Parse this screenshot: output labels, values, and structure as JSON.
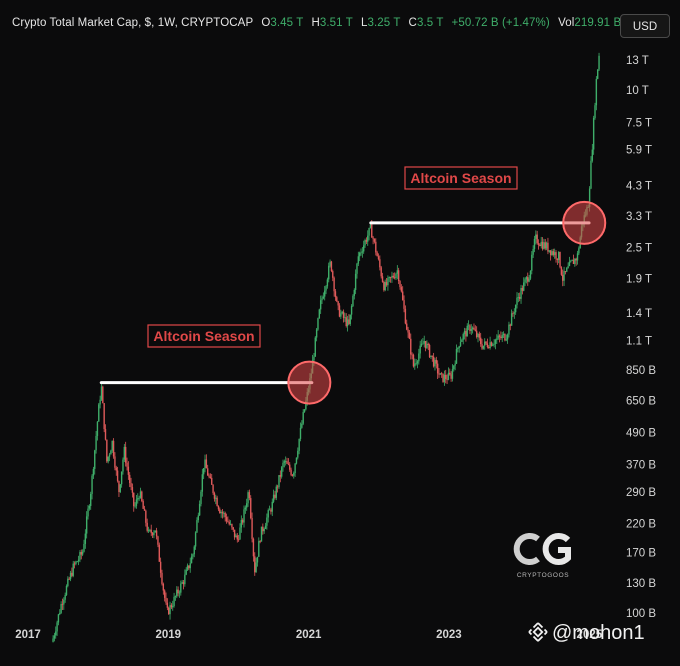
{
  "header": {
    "symbol": "Crypto Total Market Cap, $, 1W, CRYPTOCAP",
    "open_label": "O",
    "open_value": "3.45 T",
    "high_label": "H",
    "high_value": "3.51 T",
    "low_label": "L",
    "low_value": "3.25 T",
    "close_label": "C",
    "close_value": "3.5 T",
    "change": "+50.72 B (+1.47%)",
    "vol_label": "Vol",
    "vol_value": "219.91 B"
  },
  "toolbar": {
    "currency_button": "USD"
  },
  "watermark": {
    "label": "CRYPTOGOOS"
  },
  "credit": {
    "handle": "@mohon1"
  },
  "colors": {
    "up": "#3fae6a",
    "down": "#e05a5a",
    "annotation": "#e04848",
    "background": "#0b0b0c"
  },
  "chart_data": {
    "type": "line",
    "title": "Crypto Total Market Cap, $, 1W, CRYPTOCAP",
    "xlabel": "",
    "ylabel": "",
    "y_scale": "log",
    "ylim": [
      90,
      15500
    ],
    "xlim": [
      "2017-01-01",
      "2025-02-15"
    ],
    "y_ticks": [
      {
        "value": 13000,
        "label": "13 T"
      },
      {
        "value": 10000,
        "label": "10 T"
      },
      {
        "value": 7500,
        "label": "7.5 T"
      },
      {
        "value": 5900,
        "label": "5.9 T"
      },
      {
        "value": 4300,
        "label": "4.3 T"
      },
      {
        "value": 3300,
        "label": "3.3 T"
      },
      {
        "value": 2500,
        "label": "2.5 T"
      },
      {
        "value": 1900,
        "label": "1.9 T"
      },
      {
        "value": 1400,
        "label": "1.4 T"
      },
      {
        "value": 1100,
        "label": "1.1 T"
      },
      {
        "value": 850,
        "label": "850 B"
      },
      {
        "value": 650,
        "label": "650 B"
      },
      {
        "value": 490,
        "label": "490 B"
      },
      {
        "value": 370,
        "label": "370 B"
      },
      {
        "value": 290,
        "label": "290 B"
      },
      {
        "value": 220,
        "label": "220 B"
      },
      {
        "value": 170,
        "label": "170 B"
      },
      {
        "value": 130,
        "label": "130 B"
      },
      {
        "value": 100,
        "label": "100 B"
      }
    ],
    "x_ticks": [
      {
        "value": "2017-01-01",
        "label": "2017"
      },
      {
        "value": "2019-01-01",
        "label": "2019"
      },
      {
        "value": "2021-01-01",
        "label": "2021"
      },
      {
        "value": "2023-01-01",
        "label": "2023"
      },
      {
        "value": "2025-01-01",
        "label": "2025"
      }
    ],
    "series": [
      {
        "values_unit": "billion USD",
        "points": [
          [
            "2017-05-01",
            80
          ],
          [
            "2017-06-15",
            110
          ],
          [
            "2017-08-15",
            150
          ],
          [
            "2017-10-01",
            170
          ],
          [
            "2017-11-15",
            300
          ],
          [
            "2017-12-20",
            560
          ],
          [
            "2018-01-07",
            740
          ],
          [
            "2018-02-05",
            380
          ],
          [
            "2018-03-05",
            450
          ],
          [
            "2018-04-08",
            290
          ],
          [
            "2018-05-06",
            420
          ],
          [
            "2018-06-28",
            250
          ],
          [
            "2018-07-25",
            290
          ],
          [
            "2018-09-10",
            200
          ],
          [
            "2018-10-15",
            210
          ],
          [
            "2018-11-25",
            125
          ],
          [
            "2018-12-15",
            100
          ],
          [
            "2019-01-15",
            110
          ],
          [
            "2019-03-15",
            135
          ],
          [
            "2019-05-01",
            170
          ],
          [
            "2019-06-26",
            380
          ],
          [
            "2019-08-01",
            310
          ],
          [
            "2019-09-15",
            250
          ],
          [
            "2019-10-20",
            230
          ],
          [
            "2019-12-15",
            190
          ],
          [
            "2020-01-15",
            230
          ],
          [
            "2020-02-15",
            300
          ],
          [
            "2020-03-15",
            145
          ],
          [
            "2020-04-15",
            200
          ],
          [
            "2020-06-15",
            260
          ],
          [
            "2020-08-15",
            380
          ],
          [
            "2020-10-01",
            340
          ],
          [
            "2020-11-20",
            550
          ],
          [
            "2021-01-01",
            800
          ],
          [
            "2021-02-20",
            1500
          ],
          [
            "2021-04-15",
            2200
          ],
          [
            "2021-05-20",
            1450
          ],
          [
            "2021-07-20",
            1250
          ],
          [
            "2021-09-05",
            2300
          ],
          [
            "2021-11-10",
            2950
          ],
          [
            "2022-01-20",
            1750
          ],
          [
            "2022-03-30",
            2050
          ],
          [
            "2022-05-15",
            1250
          ],
          [
            "2022-06-20",
            880
          ],
          [
            "2022-08-15",
            1100
          ],
          [
            "2022-11-10",
            790
          ],
          [
            "2022-12-31",
            800
          ],
          [
            "2023-02-15",
            1100
          ],
          [
            "2023-04-15",
            1250
          ],
          [
            "2023-06-15",
            1050
          ],
          [
            "2023-08-15",
            1100
          ],
          [
            "2023-10-15",
            1150
          ],
          [
            "2023-12-15",
            1600
          ],
          [
            "2024-02-15",
            2000
          ],
          [
            "2024-03-15",
            2700
          ],
          [
            "2024-05-15",
            2500
          ],
          [
            "2024-07-15",
            2300
          ],
          [
            "2024-08-05",
            1900
          ],
          [
            "2024-09-15",
            2150
          ],
          [
            "2024-10-20",
            2300
          ],
          [
            "2024-11-15",
            3100
          ],
          [
            "2024-12-15",
            3600
          ],
          [
            "2025-01-05",
            6000
          ],
          [
            "2025-01-25",
            10500
          ],
          [
            "2025-02-15",
            14800
          ]
        ]
      }
    ],
    "annotations": [
      {
        "text": "Altcoin Season",
        "line_value": 760,
        "from": "2018-01-07",
        "to": "2021-01-07",
        "circle_at": [
          "2020-12-25",
          760
        ]
      },
      {
        "text": "Altcoin Season",
        "line_value": 3100,
        "from": "2021-11-10",
        "to": "2024-12-20",
        "circle_at": [
          "2024-11-25",
          3100
        ]
      }
    ],
    "grid": false,
    "legend": "none"
  }
}
